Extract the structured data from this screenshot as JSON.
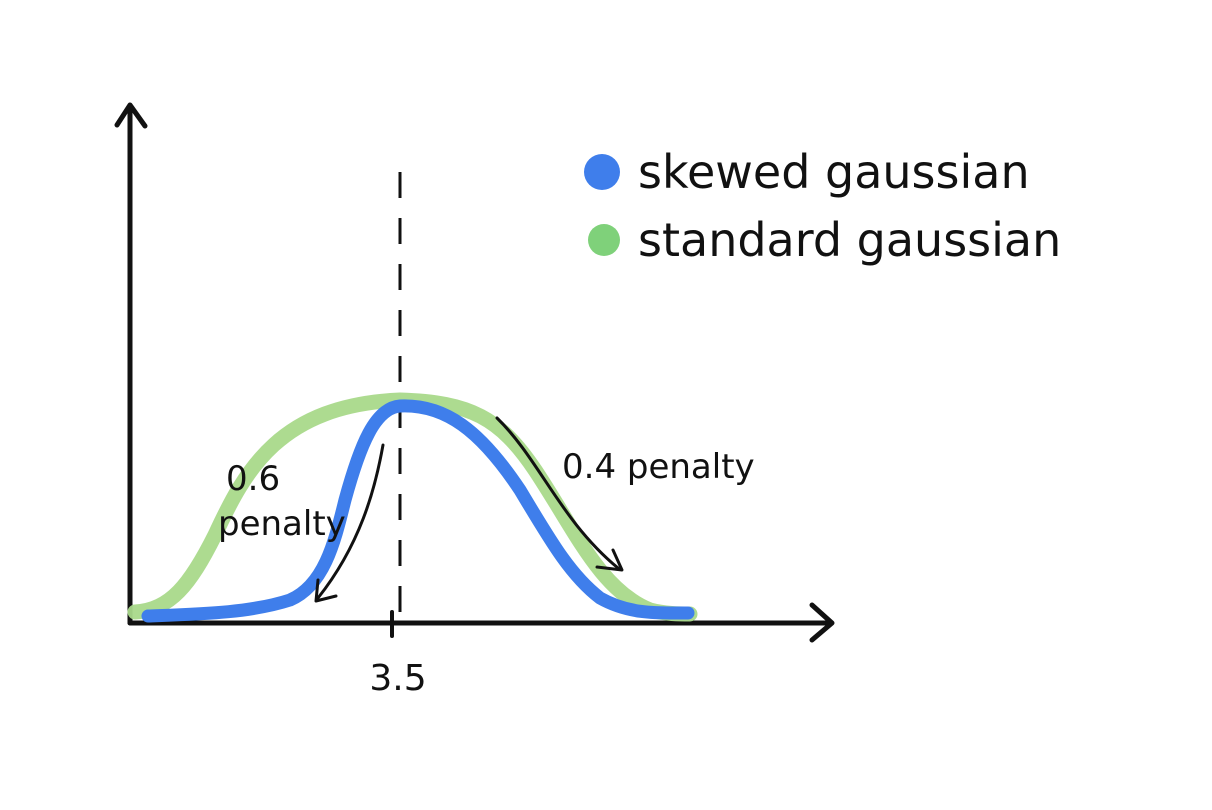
{
  "colors": {
    "ink": "#111111",
    "skewed": "#3F7EEB",
    "standard": "#A9D98A",
    "standard_marker": "#7FD17A",
    "background": "#ffffff"
  },
  "legend": {
    "items": [
      {
        "label": "skewed gaussian",
        "color": "#3F7EEB"
      },
      {
        "label": "standard gaussian",
        "color": "#7FD17A"
      }
    ]
  },
  "annotations": {
    "left_value": "0.6",
    "left_word": "penalty",
    "right": "0.4 penalty"
  },
  "axis": {
    "x_tick_label": "3.5"
  }
}
